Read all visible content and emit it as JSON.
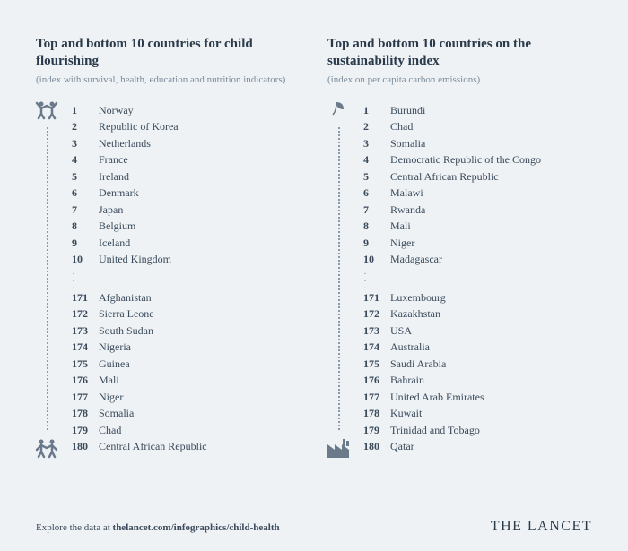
{
  "left": {
    "title": "Top and bottom 10 countries for child flourishing",
    "subtitle": "(index with survival, health, education and nutrition indicators)",
    "top": [
      {
        "rank": "1",
        "name": "Norway"
      },
      {
        "rank": "2",
        "name": "Republic of Korea"
      },
      {
        "rank": "3",
        "name": "Netherlands"
      },
      {
        "rank": "4",
        "name": "France"
      },
      {
        "rank": "5",
        "name": "Ireland"
      },
      {
        "rank": "6",
        "name": "Denmark"
      },
      {
        "rank": "7",
        "name": "Japan"
      },
      {
        "rank": "8",
        "name": "Belgium"
      },
      {
        "rank": "9",
        "name": "Iceland"
      },
      {
        "rank": "10",
        "name": "United Kingdom"
      }
    ],
    "bottom": [
      {
        "rank": "171",
        "name": "Afghanistan"
      },
      {
        "rank": "172",
        "name": "Sierra Leone"
      },
      {
        "rank": "173",
        "name": "South Sudan"
      },
      {
        "rank": "174",
        "name": "Nigeria"
      },
      {
        "rank": "175",
        "name": "Guinea"
      },
      {
        "rank": "176",
        "name": "Mali"
      },
      {
        "rank": "177",
        "name": "Niger"
      },
      {
        "rank": "178",
        "name": "Somalia"
      },
      {
        "rank": "179",
        "name": "Chad"
      },
      {
        "rank": "180",
        "name": "Central African Republic"
      }
    ]
  },
  "right": {
    "title": "Top and bottom 10 countries on the sustainability index",
    "subtitle": "(index on per capita carbon emissions)",
    "top": [
      {
        "rank": "1",
        "name": "Burundi"
      },
      {
        "rank": "2",
        "name": "Chad"
      },
      {
        "rank": "3",
        "name": "Somalia"
      },
      {
        "rank": "4",
        "name": "Democratic Republic of the Congo"
      },
      {
        "rank": "5",
        "name": "Central African Republic"
      },
      {
        "rank": "6",
        "name": "Malawi"
      },
      {
        "rank": "7",
        "name": "Rwanda"
      },
      {
        "rank": "8",
        "name": "Mali"
      },
      {
        "rank": "9",
        "name": "Niger"
      },
      {
        "rank": "10",
        "name": "Madagascar"
      }
    ],
    "bottom": [
      {
        "rank": "171",
        "name": "Luxembourg"
      },
      {
        "rank": "172",
        "name": "Kazakhstan"
      },
      {
        "rank": "173",
        "name": "USA"
      },
      {
        "rank": "174",
        "name": "Australia"
      },
      {
        "rank": "175",
        "name": "Saudi Arabia"
      },
      {
        "rank": "176",
        "name": "Bahrain"
      },
      {
        "rank": "177",
        "name": "United Arab Emirates"
      },
      {
        "rank": "178",
        "name": "Kuwait"
      },
      {
        "rank": "179",
        "name": "Trinidad and Tobago"
      },
      {
        "rank": "180",
        "name": "Qatar"
      }
    ]
  },
  "footer": {
    "explore_prefix": "Explore the data at ",
    "explore_link": "thelancet.com/infographics/child-health",
    "brand": "THE LANCET"
  },
  "styling": {
    "background_color": "#eef2f5",
    "text_color": "#3a4a5a",
    "title_color": "#2a3a4a",
    "subtitle_color": "#7a8a9a",
    "icon_color": "#6a7a8a",
    "dot_color": "#8a9aaa",
    "title_fontsize": 15,
    "subtitle_fontsize": 11,
    "row_fontsize": 12,
    "footer_fontsize": 11,
    "brand_fontsize": 16
  }
}
